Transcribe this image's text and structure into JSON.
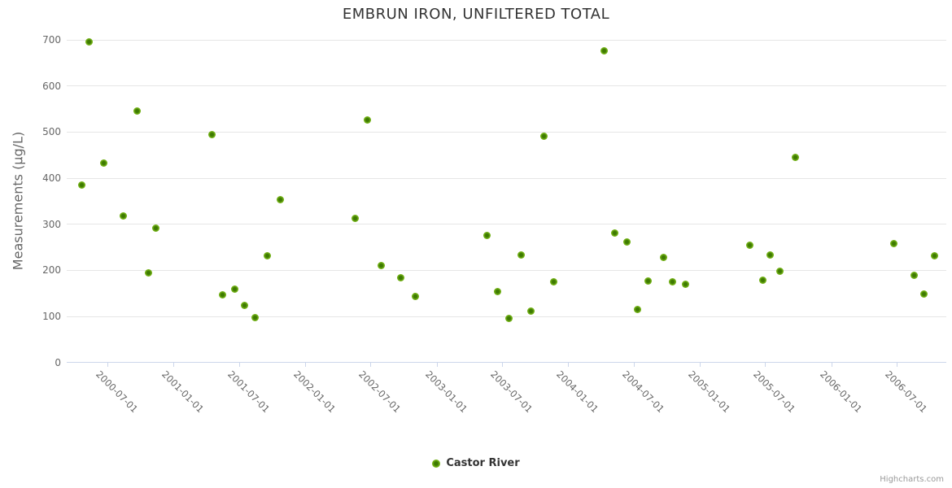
{
  "credits": {
    "text": "Highcharts.com"
  },
  "legend": {
    "items": [
      {
        "label": "Castor River",
        "marker_icon": "circle-marker-icon",
        "marker_color": "#7eb91f"
      }
    ]
  },
  "colors": {
    "point_outer": "#7eb91f",
    "point_inner": "#3e7a02",
    "gridline": "#e6e6e6",
    "axis_line": "#ccd6eb",
    "axis_label": "#666666",
    "title_text": "#333333",
    "credits_text": "#999999",
    "background": "#ffffff"
  },
  "chart_data": {
    "type": "scatter",
    "title": "EMBRUN IRON, UNFILTERED TOTAL",
    "xlabel": "",
    "ylabel": "Measurements (µg/L)",
    "ylim": [
      0,
      700
    ],
    "yticks": [
      0,
      100,
      200,
      300,
      400,
      500,
      600,
      700
    ],
    "xticks": [
      "2000-07-01",
      "2001-01-01",
      "2001-07-01",
      "2002-01-01",
      "2002-07-01",
      "2003-01-01",
      "2003-07-01",
      "2004-01-01",
      "2004-07-01",
      "2005-01-01",
      "2005-07-01",
      "2006-01-01",
      "2006-07-01"
    ],
    "xrange": [
      "2000-03-10",
      "2006-11-16"
    ],
    "grid": true,
    "legend_position": "bottom-center",
    "series": [
      {
        "name": "Castor River",
        "color": "#7eb91f",
        "points": [
          {
            "x": "2000-04-20",
            "y": 385
          },
          {
            "x": "2000-05-12",
            "y": 695
          },
          {
            "x": "2000-06-20",
            "y": 432
          },
          {
            "x": "2000-08-15",
            "y": 318
          },
          {
            "x": "2000-09-22",
            "y": 545
          },
          {
            "x": "2000-10-24",
            "y": 194
          },
          {
            "x": "2000-11-13",
            "y": 292
          },
          {
            "x": "2001-04-18",
            "y": 494
          },
          {
            "x": "2001-05-17",
            "y": 146
          },
          {
            "x": "2001-06-20",
            "y": 160
          },
          {
            "x": "2001-07-17",
            "y": 123
          },
          {
            "x": "2001-08-15",
            "y": 98
          },
          {
            "x": "2001-09-18",
            "y": 232
          },
          {
            "x": "2001-10-24",
            "y": 354
          },
          {
            "x": "2002-05-20",
            "y": 312
          },
          {
            "x": "2002-06-23",
            "y": 527
          },
          {
            "x": "2002-07-30",
            "y": 211
          },
          {
            "x": "2002-09-24",
            "y": 184
          },
          {
            "x": "2002-11-03",
            "y": 144
          },
          {
            "x": "2003-05-21",
            "y": 275
          },
          {
            "x": "2003-06-20",
            "y": 154
          },
          {
            "x": "2003-07-21",
            "y": 95
          },
          {
            "x": "2003-08-23",
            "y": 233
          },
          {
            "x": "2003-09-19",
            "y": 111
          },
          {
            "x": "2003-10-27",
            "y": 491
          },
          {
            "x": "2003-11-21",
            "y": 175
          },
          {
            "x": "2004-04-11",
            "y": 676
          },
          {
            "x": "2004-05-09",
            "y": 281
          },
          {
            "x": "2004-06-12",
            "y": 262
          },
          {
            "x": "2004-07-11",
            "y": 115
          },
          {
            "x": "2004-08-09",
            "y": 177
          },
          {
            "x": "2004-09-21",
            "y": 228
          },
          {
            "x": "2004-10-16",
            "y": 175
          },
          {
            "x": "2004-11-22",
            "y": 169
          },
          {
            "x": "2005-05-20",
            "y": 255
          },
          {
            "x": "2005-06-25",
            "y": 178
          },
          {
            "x": "2005-07-15",
            "y": 233
          },
          {
            "x": "2005-08-12",
            "y": 198
          },
          {
            "x": "2005-09-24",
            "y": 445
          },
          {
            "x": "2006-06-23",
            "y": 258
          },
          {
            "x": "2006-08-18",
            "y": 190
          },
          {
            "x": "2006-09-16",
            "y": 149
          },
          {
            "x": "2006-10-14",
            "y": 232
          }
        ]
      }
    ]
  }
}
